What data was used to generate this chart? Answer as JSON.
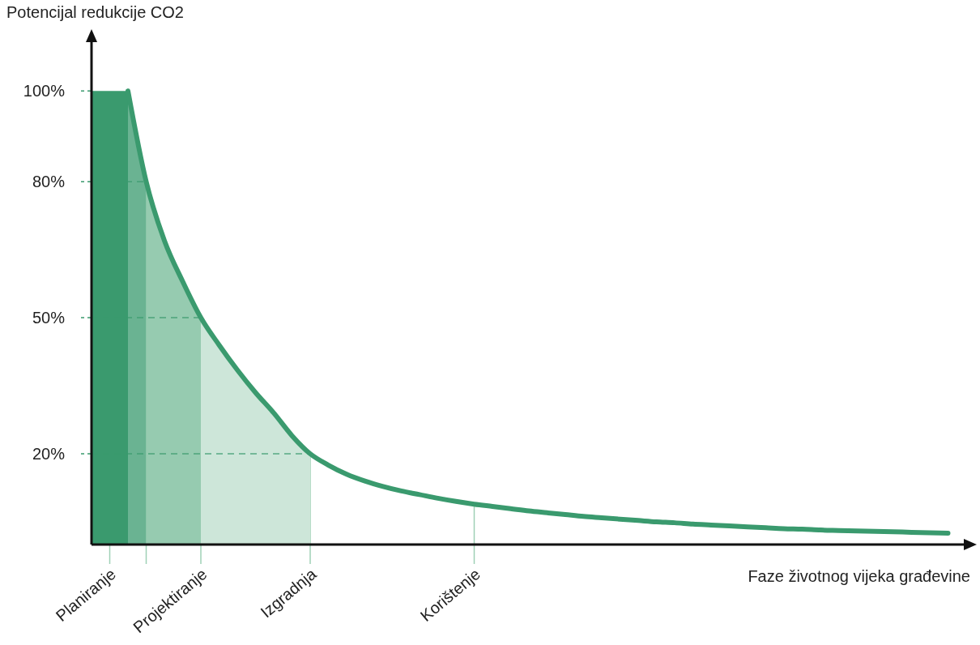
{
  "chart_data": {
    "type": "line",
    "ylabel": "Potencijal redukcije CO2",
    "xlabel": "Faze životnog vijeka građevine",
    "categories": [
      null,
      "Planiranje",
      null,
      null,
      null,
      null,
      "Projektiranje",
      null,
      null,
      null,
      null,
      null,
      "Izgradnja",
      null,
      null,
      null,
      null,
      null,
      null,
      null,
      null,
      "Korištenje",
      null,
      null,
      null,
      null,
      null,
      null,
      null,
      null,
      null,
      null,
      null,
      null,
      null,
      null,
      null,
      null,
      null,
      null,
      null,
      null,
      null,
      null,
      null,
      null,
      null,
      null
    ],
    "ylim": [
      0,
      112
    ],
    "yticks": [
      {
        "value": 20,
        "label": "20%"
      },
      {
        "value": 50,
        "label": "50%"
      },
      {
        "value": 80,
        "label": "80%"
      },
      {
        "value": 100,
        "label": "100%"
      }
    ],
    "series": [
      {
        "type": "area",
        "color": "#3a9a6e",
        "values": [
          100,
          100,
          100,
          null,
          null,
          null,
          null,
          null,
          null,
          null,
          null,
          null,
          null,
          null,
          null,
          null,
          null,
          null,
          null,
          null,
          null,
          null,
          null,
          null,
          null,
          null,
          null,
          null,
          null,
          null,
          null,
          null,
          null,
          null,
          null,
          null,
          null,
          null,
          null,
          null,
          null,
          null,
          null,
          null,
          null,
          null,
          null,
          null
        ]
      },
      {
        "type": "area",
        "color": "#6ab392",
        "values": [
          null,
          null,
          100,
          80,
          null,
          null,
          null,
          null,
          null,
          null,
          null,
          null,
          null,
          null,
          null,
          null,
          null,
          null,
          null,
          null,
          null,
          null,
          null,
          null,
          null,
          null,
          null,
          null,
          null,
          null,
          null,
          null,
          null,
          null,
          null,
          null,
          null,
          null,
          null,
          null,
          null,
          null,
          null,
          null,
          null,
          null,
          null,
          null
        ]
      },
      {
        "type": "area",
        "color": "#96cbb0",
        "values": [
          null,
          null,
          null,
          80,
          67,
          58,
          50,
          null,
          null,
          null,
          null,
          null,
          null,
          null,
          null,
          null,
          null,
          null,
          null,
          null,
          null,
          null,
          null,
          null,
          null,
          null,
          null,
          null,
          null,
          null,
          null,
          null,
          null,
          null,
          null,
          null,
          null,
          null,
          null,
          null,
          null,
          null,
          null,
          null,
          null,
          null,
          null,
          null
        ]
      },
      {
        "type": "area",
        "color": "#cde6d9",
        "values": [
          null,
          null,
          null,
          null,
          null,
          null,
          50,
          44,
          38.5,
          33.5,
          29,
          24,
          20,
          null,
          null,
          null,
          null,
          null,
          null,
          null,
          null,
          null,
          null,
          null,
          null,
          null,
          null,
          null,
          null,
          null,
          null,
          null,
          null,
          null,
          null,
          null,
          null,
          null,
          null,
          null,
          null,
          null,
          null,
          null,
          null,
          null,
          null,
          null
        ]
      },
      {
        "color": "#3a9a6e",
        "values": [
          null,
          null,
          100,
          80,
          67,
          58,
          50,
          44,
          38.5,
          33.5,
          29,
          24,
          20,
          17.5,
          15.5,
          14,
          12.8,
          11.8,
          11,
          10.2,
          9.5,
          8.9,
          8.4,
          7.9,
          7.4,
          7,
          6.6,
          6.2,
          5.9,
          5.6,
          5.3,
          5,
          4.8,
          4.5,
          4.3,
          4.1,
          3.9,
          3.7,
          3.5,
          3.4,
          3.2,
          3.1,
          3,
          2.9,
          2.8,
          2.7,
          2.6,
          2.5
        ]
      }
    ]
  }
}
